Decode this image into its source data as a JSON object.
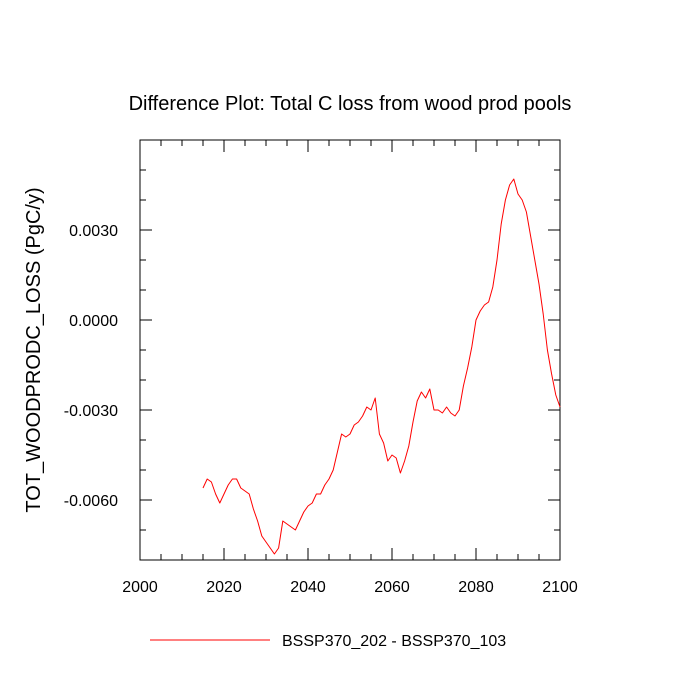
{
  "chart_data": {
    "type": "line",
    "title": "Difference Plot: Total C loss from wood prod pools",
    "xlabel": "",
    "ylabel": "TOT_WOODPRODC_LOSS  (PgC/y)",
    "xlim": [
      2000,
      2100
    ],
    "ylim": [
      -0.008,
      0.006
    ],
    "x_ticks": [
      2000,
      2020,
      2040,
      2060,
      2080,
      2100
    ],
    "x_tick_labels": [
      "2000",
      "2020",
      "2040",
      "2060",
      "2080",
      "2100"
    ],
    "y_ticks": [
      -0.006,
      -0.003,
      0.0,
      0.003
    ],
    "y_tick_labels": [
      "-0.0060",
      "-0.0030",
      "0.0000",
      "0.0030"
    ],
    "grid": false,
    "legend_position": "bottom",
    "series": [
      {
        "name": "BSSP370_202 - BSSP370_103",
        "color": "#ff0000",
        "x": [
          2015,
          2016,
          2017,
          2018,
          2019,
          2020,
          2021,
          2022,
          2023,
          2024,
          2025,
          2026,
          2027,
          2028,
          2029,
          2030,
          2031,
          2032,
          2033,
          2034,
          2035,
          2036,
          2037,
          2038,
          2039,
          2040,
          2041,
          2042,
          2043,
          2044,
          2045,
          2046,
          2047,
          2048,
          2049,
          2050,
          2051,
          2052,
          2053,
          2054,
          2055,
          2056,
          2057,
          2058,
          2059,
          2060,
          2061,
          2062,
          2063,
          2064,
          2065,
          2066,
          2067,
          2068,
          2069,
          2070,
          2071,
          2072,
          2073,
          2074,
          2075,
          2076,
          2077,
          2078,
          2079,
          2080,
          2081,
          2082,
          2083,
          2084,
          2085,
          2086,
          2087,
          2088,
          2089,
          2090,
          2091,
          2092,
          2093,
          2094,
          2095,
          2096,
          2097,
          2098,
          2099,
          2100
        ],
        "values": [
          -0.0056,
          -0.0053,
          -0.0054,
          -0.0058,
          -0.0061,
          -0.0058,
          -0.0055,
          -0.0053,
          -0.0053,
          -0.0056,
          -0.0057,
          -0.0058,
          -0.0063,
          -0.0067,
          -0.0072,
          -0.0074,
          -0.0076,
          -0.0078,
          -0.0076,
          -0.0067,
          -0.0068,
          -0.0069,
          -0.007,
          -0.0067,
          -0.0064,
          -0.0062,
          -0.0061,
          -0.0058,
          -0.0058,
          -0.0055,
          -0.0053,
          -0.005,
          -0.0044,
          -0.0038,
          -0.0039,
          -0.0038,
          -0.0035,
          -0.0034,
          -0.0032,
          -0.0029,
          -0.003,
          -0.0026,
          -0.0038,
          -0.0041,
          -0.0047,
          -0.0045,
          -0.0046,
          -0.0051,
          -0.0047,
          -0.0042,
          -0.0034,
          -0.0027,
          -0.0024,
          -0.0026,
          -0.0023,
          -0.003,
          -0.003,
          -0.0031,
          -0.0029,
          -0.0031,
          -0.0032,
          -0.003,
          -0.0022,
          -0.0016,
          -0.0009,
          0.0,
          0.0003,
          0.0005,
          0.0006,
          0.0011,
          0.002,
          0.0032,
          0.004,
          0.0045,
          0.0047,
          0.0042,
          0.004,
          0.0036,
          0.0028,
          0.002,
          0.0012,
          0.0002,
          -0.001,
          -0.0018,
          -0.0025,
          -0.0029
        ]
      }
    ]
  }
}
